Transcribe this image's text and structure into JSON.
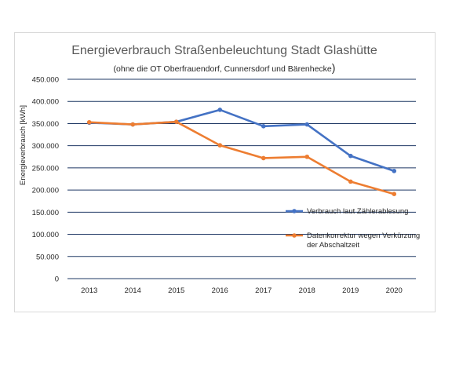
{
  "chart_data": {
    "type": "line",
    "title": "Energieverbrauch Straßenbeleuchtung Stadt Glashütte",
    "subtitle_main": "(ohne die OT Oberfrauendorf, Cunnersdorf und Bärenhecke",
    "subtitle_close": ")",
    "xlabel": "",
    "ylabel": "Energieverbrauch [kWh]",
    "categories": [
      "2013",
      "2014",
      "2015",
      "2016",
      "2017",
      "2018",
      "2019",
      "2020"
    ],
    "ylim": [
      0,
      450000
    ],
    "yticks": [
      0,
      50000,
      100000,
      150000,
      200000,
      250000,
      300000,
      350000,
      400000,
      450000
    ],
    "ytick_labels": [
      "0",
      "50.000",
      "100.000",
      "150.000",
      "200.000",
      "250.000",
      "300.000",
      "350.000",
      "400.000",
      "450.000"
    ],
    "grid": true,
    "legend_position": "right",
    "series": [
      {
        "name": "Verbrauch laut Zählerablesung",
        "name_lines": [
          "Verbrauch laut Zählerablesung"
        ],
        "color": "#4472c4",
        "values": [
          352000,
          348000,
          354000,
          381000,
          344000,
          348000,
          277000,
          243000
        ]
      },
      {
        "name": "Datenkorrektur wegen Verkürzung der Abschaltzeit",
        "name_lines": [
          "Datenkorrektur wegen Verkürzung",
          "der Abschaltzeit"
        ],
        "color": "#ed7d31",
        "values": [
          353000,
          348000,
          354000,
          301000,
          272000,
          275000,
          219000,
          191000
        ]
      }
    ]
  }
}
